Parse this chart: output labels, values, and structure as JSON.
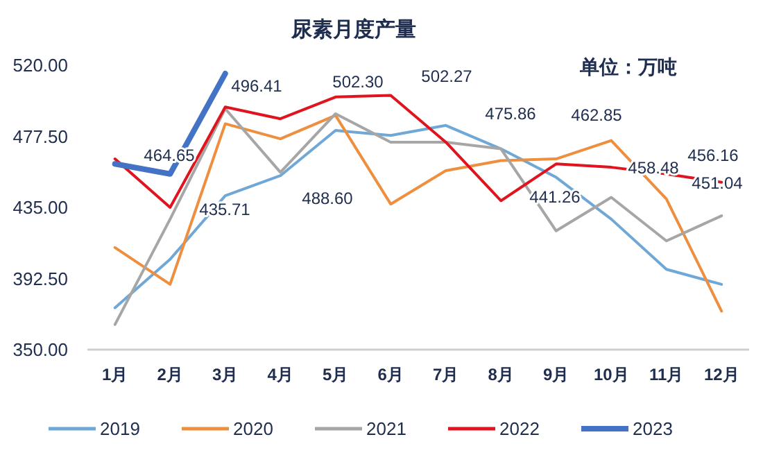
{
  "chart_data": {
    "type": "line",
    "title": "尿素月度产量",
    "categories": [
      "1月",
      "2月",
      "3月",
      "4月",
      "5月",
      "6月",
      "7月",
      "8月",
      "9月",
      "10月",
      "11月",
      "12月"
    ],
    "series": [
      {
        "name": "2019",
        "color": "#6fa8d6",
        "values": [
          375,
          404,
          442,
          454,
          481,
          478,
          484,
          470,
          453,
          428,
          398,
          389
        ]
      },
      {
        "name": "2020",
        "color": "#ed8f3f",
        "values": [
          411,
          389,
          485,
          476,
          490,
          437,
          457,
          463,
          464,
          475,
          440,
          373
        ]
      },
      {
        "name": "2021",
        "color": "#a6a6a6",
        "values": [
          365,
          428,
          494,
          456,
          491,
          474,
          474,
          470,
          421,
          441,
          415,
          430
        ]
      },
      {
        "name": "2022",
        "color": "#e0141e",
        "values": [
          464,
          435,
          495,
          488,
          501,
          502,
          474,
          439,
          461,
          459,
          455,
          450
        ]
      },
      {
        "name": "2023",
        "color": "#4472c4",
        "values": [
          461,
          455,
          515,
          null,
          null,
          null,
          null,
          null,
          null,
          null,
          null,
          null
        ]
      }
    ],
    "ylim": [
      350,
      520
    ],
    "yticks": [
      {
        "value": 350,
        "label": "350.00"
      },
      {
        "value": 392.5,
        "label": "392.50"
      },
      {
        "value": 435,
        "label": "435.00"
      },
      {
        "value": 477.5,
        "label": "477.50"
      },
      {
        "value": 520,
        "label": "520.00"
      }
    ],
    "grid": false,
    "legend": "bottom",
    "marker": "none",
    "line_style": "solid",
    "annotations": [
      "单位：万吨",
      "464.65",
      "496.41",
      "435.71",
      "488.60",
      "502.30",
      "502.27",
      "475.86",
      "462.85",
      "441.26",
      "458.48",
      "456.16",
      "451.04"
    ]
  }
}
